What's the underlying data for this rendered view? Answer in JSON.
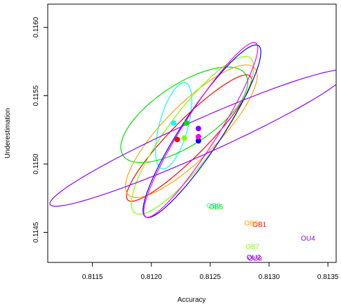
{
  "chart_data": {
    "type": "scatter",
    "xlabel": "Accuracy",
    "ylabel": "Underestimation",
    "xlim": [
      0.81112,
      0.81357
    ],
    "ylim": [
      0.11428,
      0.11617
    ],
    "x_ticks": [
      "0.8115",
      "0.8120",
      "0.8125",
      "0.8130",
      "0.8135"
    ],
    "y_ticks": [
      "0.1145",
      "0.1150",
      "0.1155",
      "0.1160"
    ],
    "grid": false,
    "legend": "none",
    "series": [
      {
        "name": "OB1",
        "color": "#ff0000",
        "point": [
          0.81222,
          0.11518
        ],
        "ellipse": {
          "cx": 0.81232,
          "cy": 0.11519,
          "rx": 0.00069,
          "ry": 0.00014,
          "angle_deg": 40.7
        },
        "label_pos": [
          0.81286,
          0.11456
        ]
      },
      {
        "name": "OB3",
        "color": "#00ffff",
        "point": [
          0.81219,
          0.1153
        ],
        "ellipse": {
          "cx": 0.81219,
          "cy": 0.11528,
          "rx": 0.00033,
          "ry": 0.00012,
          "angle_deg": 71.8
        },
        "label_pos": [
          0.81247,
          0.1147
        ]
      },
      {
        "name": "OB5",
        "color": "#00e000",
        "point": [
          0.8123,
          0.1153
        ],
        "ellipse": {
          "cx": 0.81228,
          "cy": 0.11536,
          "rx": 0.0006,
          "ry": 0.00023,
          "angle_deg": 28.4
        },
        "label_pos": [
          0.81249,
          0.11469
        ]
      },
      {
        "name": "OB6",
        "color": "#ffa500",
        "point": [
          0.8124,
          0.1152
        ],
        "ellipse": {
          "cx": 0.81234,
          "cy": 0.11524,
          "rx": 0.00071,
          "ry": 0.00021,
          "angle_deg": 40.2
        },
        "label_pos": [
          0.81279,
          0.11457
        ]
      },
      {
        "name": "OB7",
        "color": "#7fff00",
        "point": [
          0.81228,
          0.11519
        ],
        "ellipse": {
          "cx": 0.81235,
          "cy": 0.11521,
          "rx": 0.00075,
          "ry": 0.0002,
          "angle_deg": 48.5
        },
        "label_pos": [
          0.8128,
          0.1144
        ]
      },
      {
        "name": "OU2",
        "color": "#0000ff",
        "point": [
          0.8124,
          0.11517
        ],
        "ellipse": {
          "cx": 0.81243,
          "cy": 0.11524,
          "rx": 0.00079,
          "ry": 0.00016,
          "angle_deg": 52.2
        },
        "label_pos": [
          0.81281,
          0.11432
        ]
      },
      {
        "name": "OU4",
        "color": "#8b00ff",
        "point": [
          0.8124,
          0.11526
        ],
        "ellipse": {
          "cx": 0.8124,
          "cy": 0.11519,
          "rx": 0.00135,
          "ry": 0.00013,
          "angle_deg": 21.0
        },
        "label_pos": [
          0.81327,
          0.11446
        ]
      },
      {
        "name": "OU8",
        "color": "#ff00ff",
        "point": [
          0.8124,
          0.1152
        ],
        "ellipse": {
          "cx": 0.81242,
          "cy": 0.11525,
          "rx": 0.00079,
          "ry": 0.00014,
          "angle_deg": 53.4
        },
        "label_pos": [
          0.81282,
          0.11431
        ]
      }
    ]
  }
}
